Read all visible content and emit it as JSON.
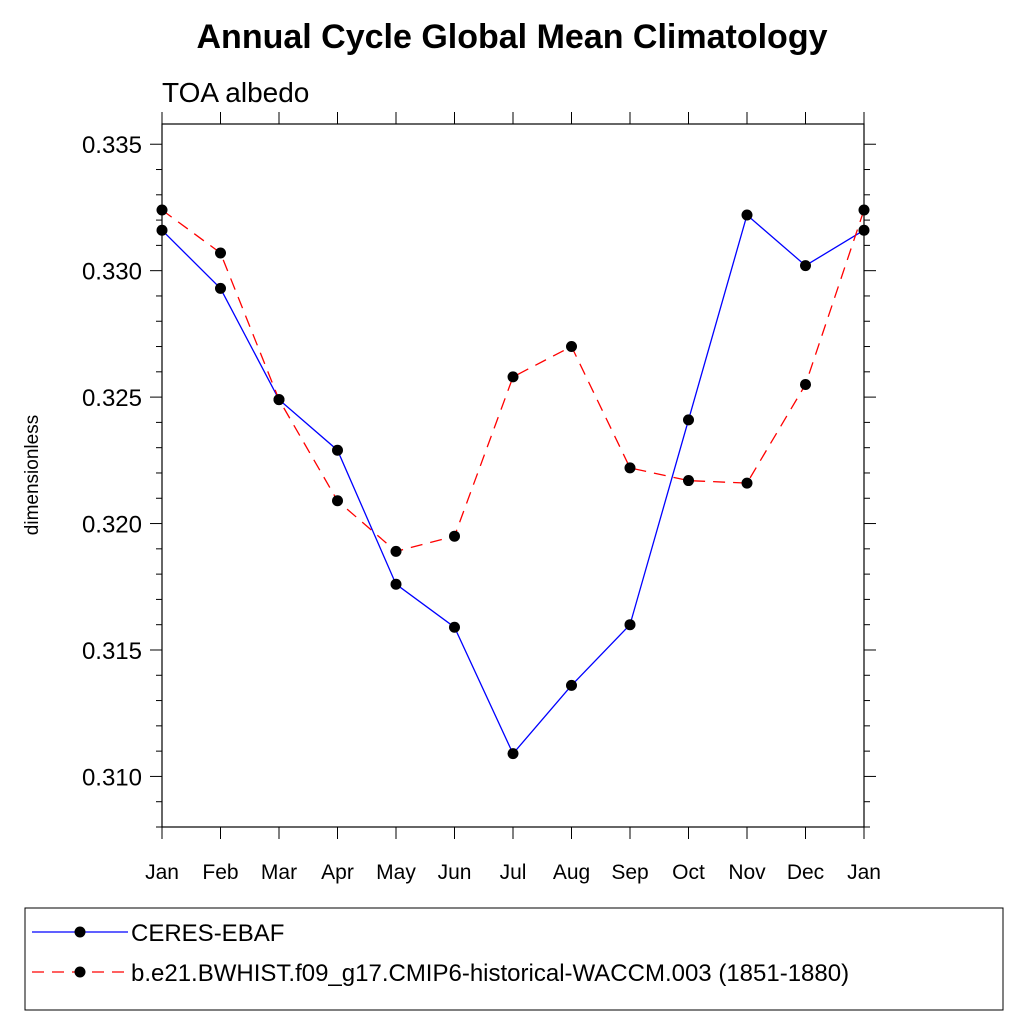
{
  "chart_data": {
    "type": "line",
    "title": "Annual Cycle Global Mean Climatology",
    "subtitle": "TOA albedo",
    "xlabel": "",
    "ylabel": "dimensionless",
    "categories": [
      "Jan",
      "Feb",
      "Mar",
      "Apr",
      "May",
      "Jun",
      "Jul",
      "Aug",
      "Sep",
      "Oct",
      "Nov",
      "Dec",
      "Jan"
    ],
    "ylim": [
      0.308,
      0.3358
    ],
    "yticks": [
      "0.310",
      "0.315",
      "0.320",
      "0.325",
      "0.330",
      "0.335"
    ],
    "grid": false,
    "legend_position": "bottom",
    "series": [
      {
        "name": "CERES-EBAF",
        "color": "#0000ff",
        "dash": "solid",
        "marker": "filled-circle",
        "values": [
          0.3316,
          0.3293,
          0.3249,
          0.3229,
          0.3176,
          0.3159,
          0.3109,
          0.3136,
          0.316,
          0.3241,
          0.3322,
          0.3302,
          0.3316
        ]
      },
      {
        "name": "b.e21.BWHIST.f09_g17.CMIP6-historical-WACCM.003 (1851-1880)",
        "color": "#ff0000",
        "dash": "dashed",
        "marker": "filled-circle",
        "values": [
          0.3324,
          0.3307,
          0.3249,
          0.3209,
          0.3189,
          0.3195,
          0.3258,
          0.327,
          0.3222,
          0.3217,
          0.3216,
          0.3255,
          0.3324
        ]
      }
    ]
  }
}
